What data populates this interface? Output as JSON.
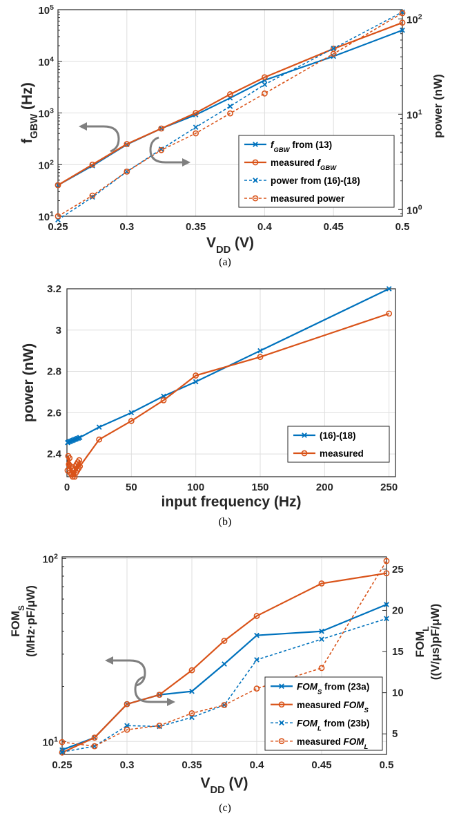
{
  "colors": {
    "blue": "#0072BD",
    "orange": "#D95319",
    "arrow": "#7f7f7f"
  },
  "chart_data": [
    {
      "type": "line",
      "panel_label": "(a)",
      "x_axis": {
        "label_main": "V",
        "label_sub": "DD",
        "label_unit": " (V)",
        "lim": [
          0.25,
          0.5
        ],
        "ticks": [
          0.25,
          0.3,
          0.35,
          0.4,
          0.45,
          0.5
        ],
        "tick_labels": [
          "0.25",
          "0.3",
          "0.35",
          "0.4",
          "0.45",
          "0.5"
        ]
      },
      "y_left": {
        "label_main": "f",
        "label_sub": "GBW",
        "label_unit": " (Hz)",
        "scale": "log",
        "lim": [
          10,
          100000
        ],
        "ticks": [
          10,
          100,
          1000,
          10000,
          100000
        ],
        "tick_base": [
          "10",
          "10",
          "10",
          "10",
          "10"
        ],
        "tick_exp": [
          "1",
          "2",
          "3",
          "4",
          "5"
        ]
      },
      "y_right": {
        "label": "power (nW)",
        "scale": "log",
        "lim": [
          0.85,
          125
        ],
        "ticks": [
          1,
          10,
          100
        ],
        "tick_base": [
          "10",
          "10",
          "10"
        ],
        "tick_exp": [
          "0",
          "1",
          "2"
        ]
      },
      "grid": true,
      "legend_position": "bottom-right",
      "series": [
        {
          "name_main": "f",
          "name_sub": "GBW",
          "name_rest": " from  (13)",
          "axis": "left",
          "color": "blue",
          "dash": "solid",
          "marker": "x",
          "x": [
            0.25,
            0.275,
            0.3,
            0.325,
            0.35,
            0.375,
            0.4,
            0.45,
            0.5
          ],
          "y": [
            40,
            95,
            245,
            500,
            920,
            1950,
            4300,
            12500,
            40000
          ]
        },
        {
          "name_main": "measured f",
          "name_sub": "GBW",
          "name_rest": "",
          "axis": "left",
          "color": "orange",
          "dash": "solid",
          "marker": "o",
          "x": [
            0.25,
            0.275,
            0.3,
            0.325,
            0.35,
            0.375,
            0.4,
            0.45,
            0.5
          ],
          "y": [
            40,
            100,
            250,
            500,
            1000,
            2300,
            4900,
            17500,
            56000
          ]
        },
        {
          "name_main": "power from (16)-(18)",
          "name_sub": "",
          "name_rest": "",
          "axis": "right",
          "color": "blue",
          "dash": "dashed",
          "marker": "x",
          "x": [
            0.25,
            0.275,
            0.3,
            0.325,
            0.35,
            0.375,
            0.4,
            0.45,
            0.5
          ],
          "y": [
            0.78,
            1.35,
            2.5,
            4.3,
            7.3,
            12.1,
            20.5,
            49,
            118
          ]
        },
        {
          "name_main": "measured power",
          "name_sub": "",
          "name_rest": "",
          "axis": "right",
          "color": "orange",
          "dash": "dashed",
          "marker": "o",
          "x": [
            0.25,
            0.275,
            0.3,
            0.325,
            0.35,
            0.375,
            0.4,
            0.45,
            0.5
          ],
          "y": [
            0.85,
            1.4,
            2.5,
            4.2,
            6.3,
            10.2,
            16.5,
            43,
            115
          ]
        }
      ]
    },
    {
      "type": "line",
      "panel_label": "(b)",
      "x_axis": {
        "label": "input frequency (Hz)",
        "lim": [
          0,
          255
        ],
        "ticks": [
          0,
          50,
          100,
          150,
          200,
          250
        ],
        "tick_labels": [
          "0",
          "50",
          "100",
          "150",
          "200",
          "250"
        ]
      },
      "y_left": {
        "label": "power (nW)",
        "scale": "linear",
        "lim": [
          2.29,
          3.2
        ],
        "ticks": [
          2.4,
          2.6,
          2.8,
          3,
          3.2
        ],
        "tick_labels": [
          "2.4",
          "2.6",
          "2.8",
          "3",
          "3.2"
        ]
      },
      "grid": true,
      "legend_position": "bottom-right",
      "series": [
        {
          "name": "(16)-(18)",
          "color": "blue",
          "dash": "solid",
          "marker": "x",
          "x": [
            0.5,
            1,
            2,
            3,
            4,
            5,
            6,
            7,
            8,
            9,
            10,
            25,
            50,
            75,
            100,
            150,
            250
          ],
          "y": [
            2.455,
            2.457,
            2.46,
            2.462,
            2.465,
            2.467,
            2.47,
            2.472,
            2.475,
            2.477,
            2.48,
            2.53,
            2.6,
            2.68,
            2.75,
            2.9,
            3.2
          ]
        },
        {
          "name": "measured",
          "color": "orange",
          "dash": "solid",
          "marker": "o",
          "x": [
            0.5,
            1,
            1.5,
            2,
            2.5,
            3,
            3.5,
            4,
            4.5,
            5,
            5.5,
            6,
            6.5,
            7,
            7.5,
            8,
            8.5,
            9,
            9.5,
            10,
            25,
            50,
            75,
            100,
            150,
            250
          ],
          "y": [
            2.32,
            2.39,
            2.35,
            2.38,
            2.31,
            2.34,
            2.3,
            2.33,
            2.29,
            2.3,
            2.32,
            2.29,
            2.34,
            2.31,
            2.35,
            2.32,
            2.36,
            2.33,
            2.37,
            2.34,
            2.47,
            2.56,
            2.66,
            2.78,
            2.87,
            3.08
          ]
        }
      ]
    },
    {
      "type": "line",
      "panel_label": "(c)",
      "x_axis": {
        "label_main": "V",
        "label_sub": "DD",
        "label_unit": " (V)",
        "lim": [
          0.25,
          0.5
        ],
        "ticks": [
          0.25,
          0.3,
          0.35,
          0.4,
          0.45,
          0.5
        ],
        "tick_labels": [
          "0.25",
          "0.3",
          "0.35",
          "0.4",
          "0.45",
          "0.5"
        ]
      },
      "y_left": {
        "label_main": "FOM",
        "label_sub": "S",
        "label_line2": "(MHz·pF/μW)",
        "scale": "log",
        "lim": [
          8.5,
          102
        ],
        "ticks": [
          10,
          100
        ],
        "tick_base": [
          "10",
          "10"
        ],
        "tick_exp": [
          "1",
          "2"
        ]
      },
      "y_right": {
        "label_main": "FOM",
        "label_sub": "L",
        "label_line2": "((V/μs)pF/μW)",
        "scale": "linear",
        "lim": [
          2.5,
          26.5
        ],
        "ticks": [
          5,
          10,
          15,
          20,
          25
        ],
        "tick_labels": [
          "5",
          "10",
          "15",
          "20",
          "25"
        ]
      },
      "grid": true,
      "legend_position": "bottom-right",
      "series": [
        {
          "name_main": "FOM",
          "name_sub": "S",
          "name_rest": " from (23a)",
          "axis": "left",
          "color": "blue",
          "dash": "solid",
          "marker": "x",
          "x": [
            0.25,
            0.275,
            0.3,
            0.325,
            0.35,
            0.375,
            0.4,
            0.45,
            0.5
          ],
          "y": [
            9,
            10.5,
            16,
            18,
            18.8,
            26.5,
            38,
            40,
            56
          ]
        },
        {
          "name_main": "measured FOM",
          "name_sub": "S",
          "name_rest": "",
          "axis": "left",
          "color": "orange",
          "dash": "solid",
          "marker": "o",
          "x": [
            0.25,
            0.275,
            0.3,
            0.325,
            0.35,
            0.375,
            0.4,
            0.45,
            0.5
          ],
          "y": [
            8.7,
            10.5,
            16,
            18,
            24.5,
            35.5,
            48.5,
            73,
            83
          ]
        },
        {
          "name_main": "FOM",
          "name_sub": "L",
          "name_rest": " from (23b)",
          "axis": "right",
          "color": "blue",
          "dash": "dashed",
          "marker": "x",
          "x": [
            0.25,
            0.275,
            0.3,
            0.325,
            0.35,
            0.375,
            0.4,
            0.45,
            0.5
          ],
          "y": [
            2.8,
            3.5,
            6,
            5.9,
            7,
            8.5,
            14,
            16.5,
            19
          ]
        },
        {
          "name_main": "measured FOM",
          "name_sub": "L",
          "name_rest": "",
          "axis": "right",
          "color": "orange",
          "dash": "dashed",
          "marker": "o",
          "x": [
            0.25,
            0.275,
            0.3,
            0.325,
            0.35,
            0.375,
            0.4,
            0.45,
            0.5
          ],
          "y": [
            4,
            3.5,
            5.5,
            6,
            7.5,
            8.5,
            10.5,
            13,
            26
          ]
        }
      ]
    }
  ]
}
